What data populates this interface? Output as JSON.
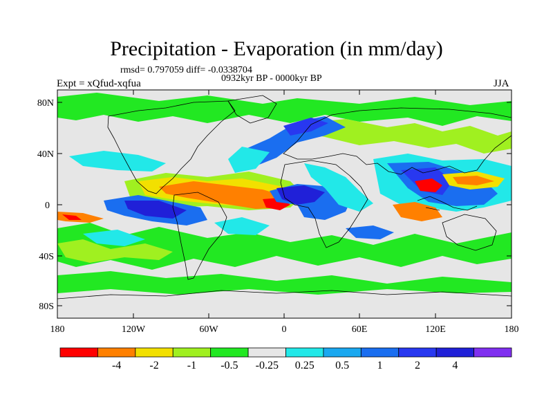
{
  "title": "Precipitation - Evaporation (in mm/day)",
  "stats": "rmsd= 0.797059 diff= -0.0338704",
  "period": "0932kyr BP - 0000kyr BP",
  "expt": "Expt = xQfud-xqfua",
  "season": "JJA",
  "map": {
    "y_ticks": [
      "80N",
      "40N",
      "0",
      "40S",
      "80S"
    ],
    "x_ticks": [
      "180",
      "120W",
      "60W",
      "0",
      "60E",
      "120E",
      "180"
    ]
  },
  "colorbar": {
    "colors": [
      "#ff0000",
      "#ff8000",
      "#f2e000",
      "#a0f020",
      "#22e822",
      "#e6e6e6",
      "#22e8e8",
      "#1aa8f0",
      "#1a6ef0",
      "#2838f0",
      "#2020d8",
      "#8030f0"
    ],
    "labels": [
      "-4",
      "-2",
      "-1",
      "-0.5",
      "-0.25",
      "0.25",
      "0.5",
      "1",
      "2",
      "4"
    ]
  }
}
